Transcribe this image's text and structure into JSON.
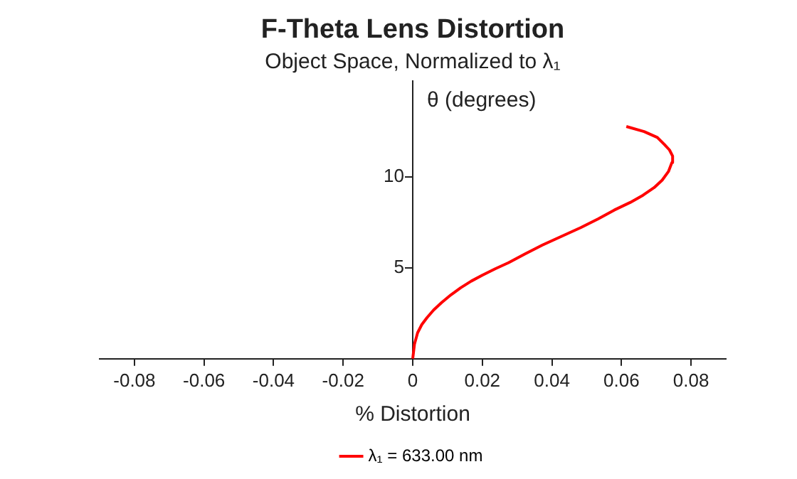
{
  "chart_data": {
    "type": "line",
    "title": "F-Theta Lens Distortion",
    "subtitle": "Object Space, Normalized to λ₁",
    "xlabel": "% Distortion",
    "ylabel": "θ (degrees)",
    "xlim": [
      -0.09,
      0.09
    ],
    "xticks": [
      -0.08,
      -0.06,
      -0.04,
      -0.02,
      0,
      0.02,
      0.04,
      0.06,
      0.08
    ],
    "ylim": [
      0,
      15.3
    ],
    "yticks": [
      {
        "value": 0,
        "label": null
      },
      5,
      10
    ],
    "series": [
      {
        "name": "λ₁ = 633.00 nm",
        "color": "#ff0000",
        "x": [
          0,
          0.0005,
          0.0014,
          0.0026,
          0.0041,
          0.006,
          0.0083,
          0.011,
          0.0138,
          0.0168,
          0.02,
          0.0237,
          0.0276,
          0.0323,
          0.0372,
          0.0428,
          0.0483,
          0.0533,
          0.0579,
          0.0625,
          0.0662,
          0.0694,
          0.0717,
          0.0735,
          0.0745,
          0.0747,
          0.0738,
          0.0723,
          0.0703,
          0.0665,
          0.0614
        ],
        "values": [
          0,
          0.8,
          1.43,
          1.88,
          2.26,
          2.68,
          3.09,
          3.52,
          3.91,
          4.27,
          4.6,
          4.95,
          5.29,
          5.77,
          6.25,
          6.74,
          7.22,
          7.7,
          8.18,
          8.6,
          9.0,
          9.42,
          9.83,
          10.3,
          10.8,
          11.15,
          11.49,
          11.8,
          12.18,
          12.5,
          12.78
        ]
      }
    ],
    "grid": false,
    "legend": "bottom",
    "marker": "none",
    "line_style": "solid"
  }
}
